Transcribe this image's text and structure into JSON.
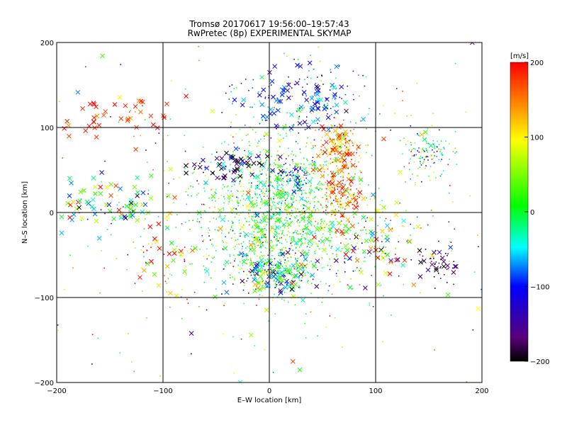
{
  "chart_data": {
    "type": "scatter",
    "title": "Tromsø 20170617 19:56:00–19:57:43",
    "subtitle": "RwPretec (8p) EXPERIMENTAL SKYMAP",
    "xlabel": "E–W location [km]",
    "ylabel": "N–S location [km]",
    "xlim": [
      -200,
      200
    ],
    "ylim": [
      -200,
      200
    ],
    "xticks": [
      "−200",
      "−100",
      "0",
      "100",
      "200"
    ],
    "yticks": [
      "−200",
      "−100",
      "0",
      "100",
      "200"
    ],
    "grid": true,
    "colorbar": {
      "label": "[m/s]",
      "range": [
        -200,
        200
      ],
      "ticks": [
        "200",
        "100",
        "0",
        "−100",
        "−200"
      ],
      "colors": [
        "#000000",
        "#5a007a",
        "#0000ff",
        "#00ffff",
        "#00ff00",
        "#ffff00",
        "#ff0000"
      ]
    },
    "markers": {
      "large": "x",
      "small": "dot"
    },
    "clusters": [
      {
        "cx": 10,
        "cy": 0,
        "sx": 35,
        "sy": 45,
        "n": 1400,
        "v_mean": 10,
        "v_sd": 55,
        "xfrac": 0.08
      },
      {
        "cx": 5,
        "cy": -75,
        "sx": 20,
        "sy": 12,
        "n": 220,
        "v_mean": -40,
        "v_sd": 90,
        "xfrac": 0.35
      },
      {
        "cx": 65,
        "cy": 75,
        "sx": 10,
        "sy": 15,
        "n": 180,
        "v_mean": 150,
        "v_sd": 45,
        "xfrac": 0.25
      },
      {
        "cx": 70,
        "cy": 20,
        "sx": 10,
        "sy": 15,
        "n": 140,
        "v_mean": 170,
        "v_sd": 35,
        "xfrac": 0.2
      },
      {
        "cx": 30,
        "cy": 130,
        "sx": 30,
        "sy": 20,
        "n": 200,
        "v_mean": -90,
        "v_sd": 40,
        "xfrac": 0.4
      },
      {
        "cx": 25,
        "cy": 45,
        "sx": 8,
        "sy": 8,
        "n": 60,
        "v_mean": -110,
        "v_sd": 25,
        "xfrac": 0.1
      },
      {
        "cx": 150,
        "cy": 70,
        "sx": 12,
        "sy": 15,
        "n": 120,
        "v_mean": -20,
        "v_sd": 70,
        "xfrac": 0.05
      },
      {
        "cx": -150,
        "cy": 10,
        "sx": 30,
        "sy": 15,
        "n": 90,
        "v_mean": 20,
        "v_sd": 120,
        "xfrac": 0.8
      },
      {
        "cx": -140,
        "cy": 110,
        "sx": 30,
        "sy": 15,
        "n": 45,
        "v_mean": 180,
        "v_sd": 25,
        "xfrac": 0.9
      },
      {
        "cx": -40,
        "cy": 55,
        "sx": 20,
        "sy": 10,
        "n": 70,
        "v_mean": -160,
        "v_sd": 60,
        "xfrac": 0.7
      },
      {
        "cx": 100,
        "cy": -30,
        "sx": 25,
        "sy": 25,
        "n": 130,
        "v_mean": 40,
        "v_sd": 150,
        "xfrac": 0.4
      },
      {
        "cx": 160,
        "cy": -60,
        "sx": 10,
        "sy": 12,
        "n": 50,
        "v_mean": -180,
        "v_sd": 30,
        "xfrac": 0.3
      },
      {
        "cx": -100,
        "cy": -50,
        "sx": 15,
        "sy": 25,
        "n": 50,
        "v_mean": 120,
        "v_sd": 90,
        "xfrac": 0.6
      },
      {
        "cx": 0,
        "cy": 0,
        "sx": 110,
        "sy": 100,
        "n": 450,
        "v_mean": 40,
        "v_sd": 110,
        "xfrac": 0.1
      }
    ]
  }
}
